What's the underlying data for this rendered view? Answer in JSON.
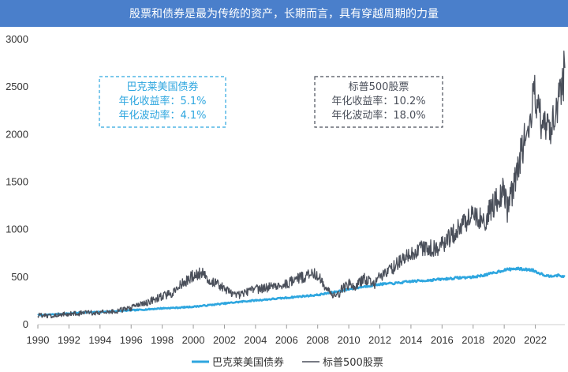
{
  "title": "股票和债券是最为传统的资产，长期而言，具有穿越周期的力量",
  "colors": {
    "bond": "#2ea6df",
    "sp500": "#4a4f5a",
    "header": "#4a7fcb"
  },
  "chart_data": {
    "type": "line",
    "xlim": [
      1990,
      2023.9
    ],
    "ylim": [
      0,
      3000
    ],
    "x_ticks": [
      "1990",
      "1992",
      "1994",
      "1996",
      "1998",
      "2000",
      "2002",
      "2004",
      "2006",
      "2008",
      "2010",
      "2012",
      "2014",
      "2016",
      "2018",
      "2020",
      "2022"
    ],
    "y_ticks": [
      "0",
      "500",
      "1000",
      "1500",
      "2000",
      "2500",
      "3000"
    ],
    "annotations": [
      {
        "series": "bond",
        "lines": [
          "巴克莱美国债券",
          "年化收益率：5.1%",
          "年化波动率：4.1%"
        ]
      },
      {
        "series": "sp500",
        "lines": [
          "标普500股票",
          "年化收益率：10.2%",
          "年化波动率：18.0%"
        ]
      }
    ],
    "series": [
      {
        "key": "bond",
        "name": "巴克莱美国债券",
        "points": [
          [
            1990,
            100
          ],
          [
            1991,
            108
          ],
          [
            1992,
            118
          ],
          [
            1993,
            128
          ],
          [
            1994,
            132
          ],
          [
            1995,
            142
          ],
          [
            1996,
            150
          ],
          [
            1997,
            160
          ],
          [
            1998,
            172
          ],
          [
            1999,
            178
          ],
          [
            2000,
            188
          ],
          [
            2001,
            205
          ],
          [
            2002,
            222
          ],
          [
            2003,
            240
          ],
          [
            2004,
            255
          ],
          [
            2005,
            268
          ],
          [
            2006,
            282
          ],
          [
            2007,
            298
          ],
          [
            2008,
            312
          ],
          [
            2008.8,
            335
          ],
          [
            2009,
            340
          ],
          [
            2010,
            372
          ],
          [
            2011,
            400
          ],
          [
            2012,
            425
          ],
          [
            2013,
            435
          ],
          [
            2014,
            455
          ],
          [
            2015,
            465
          ],
          [
            2016,
            478
          ],
          [
            2017,
            492
          ],
          [
            2018,
            500
          ],
          [
            2019,
            530
          ],
          [
            2020,
            575
          ],
          [
            2020.8,
            590
          ],
          [
            2021,
            585
          ],
          [
            2021.8,
            575
          ],
          [
            2022.3,
            540
          ],
          [
            2022.8,
            510
          ],
          [
            2023.3,
            520
          ],
          [
            2023.9,
            505
          ]
        ]
      },
      {
        "key": "sp500",
        "name": "标普500股票",
        "points": [
          [
            1990,
            100
          ],
          [
            1990.5,
            95
          ],
          [
            1990.8,
            88
          ],
          [
            1991,
            100
          ],
          [
            1992,
            112
          ],
          [
            1993,
            122
          ],
          [
            1994,
            128
          ],
          [
            1995,
            140
          ],
          [
            1996,
            175
          ],
          [
            1997,
            230
          ],
          [
            1998,
            300
          ],
          [
            1998.7,
            330
          ],
          [
            1999,
            400
          ],
          [
            1999.6,
            460
          ],
          [
            2000,
            520
          ],
          [
            2000.6,
            550
          ],
          [
            2001,
            480
          ],
          [
            2001.7,
            420
          ],
          [
            2002,
            370
          ],
          [
            2002.7,
            300
          ],
          [
            2003,
            320
          ],
          [
            2004,
            370
          ],
          [
            2005,
            400
          ],
          [
            2006,
            430
          ],
          [
            2007,
            500
          ],
          [
            2007.8,
            540
          ],
          [
            2008,
            510
          ],
          [
            2008.5,
            400
          ],
          [
            2008.9,
            320
          ],
          [
            2009.2,
            285
          ],
          [
            2009.5,
            360
          ],
          [
            2010,
            430
          ],
          [
            2010.5,
            410
          ],
          [
            2011,
            480
          ],
          [
            2011.7,
            430
          ],
          [
            2012,
            500
          ],
          [
            2013,
            620
          ],
          [
            2014,
            760
          ],
          [
            2015,
            820
          ],
          [
            2015.7,
            790
          ],
          [
            2016,
            840
          ],
          [
            2017,
            1000
          ],
          [
            2018,
            1160
          ],
          [
            2018.9,
            1070
          ],
          [
            2019,
            1180
          ],
          [
            2020,
            1420
          ],
          [
            2020.2,
            1200
          ],
          [
            2020.6,
            1450
          ],
          [
            2021,
            1750
          ],
          [
            2021.5,
            2050
          ],
          [
            2021.99,
            2450
          ],
          [
            2022.4,
            2100
          ],
          [
            2022.8,
            2050
          ],
          [
            2023.2,
            2150
          ],
          [
            2023.6,
            2400
          ],
          [
            2023.9,
            2700
          ]
        ]
      }
    ]
  }
}
